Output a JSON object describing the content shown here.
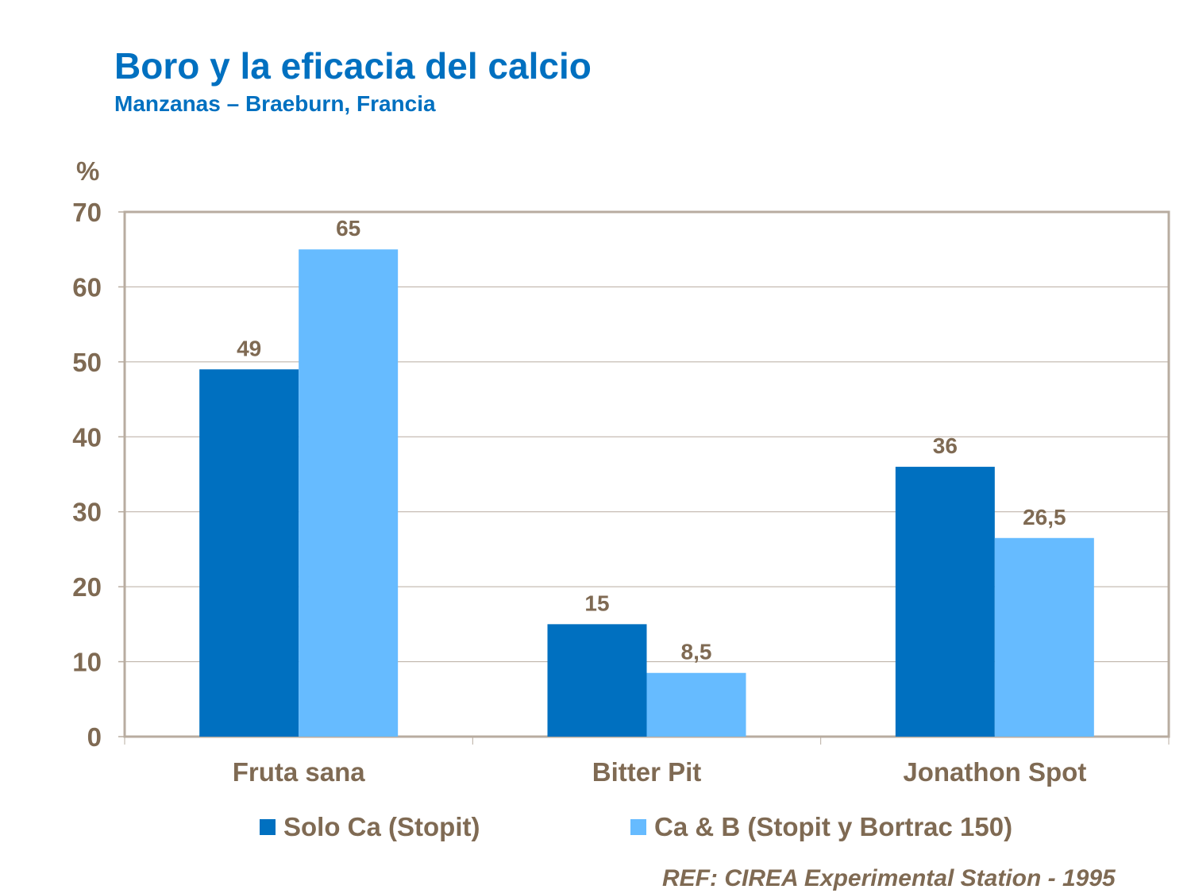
{
  "title": "Boro y la eficacia del calcio",
  "subtitle": "Manzanas – Braeburn, Francia",
  "reference": "REF: CIREA Experimental Station - 1995",
  "colors": {
    "text": "#7f6a53",
    "title": "#0070c0",
    "series1": "#0070c0",
    "series2": "#66bbff",
    "grid": "#b8aca0"
  },
  "chart_data": {
    "type": "bar",
    "title": "Boro y la eficacia del calcio",
    "subtitle": "Manzanas – Braeburn, Francia",
    "ylabel": "%",
    "xlabel": "",
    "ylim": [
      0,
      70
    ],
    "yticks": [
      0,
      10,
      20,
      30,
      40,
      50,
      60,
      70
    ],
    "grid": true,
    "legend": "bottom",
    "categories": [
      "Fruta sana",
      "Bitter Pit",
      "Jonathon Spot"
    ],
    "series": [
      {
        "name": "Solo Ca (Stopit)",
        "values": [
          49,
          15,
          36
        ],
        "labels": [
          "49",
          "15",
          "36"
        ]
      },
      {
        "name": "Ca & B (Stopit y Bortrac 150)",
        "values": [
          65,
          8.5,
          26.5
        ],
        "labels": [
          "65",
          "8,5",
          "26,5"
        ]
      }
    ]
  }
}
